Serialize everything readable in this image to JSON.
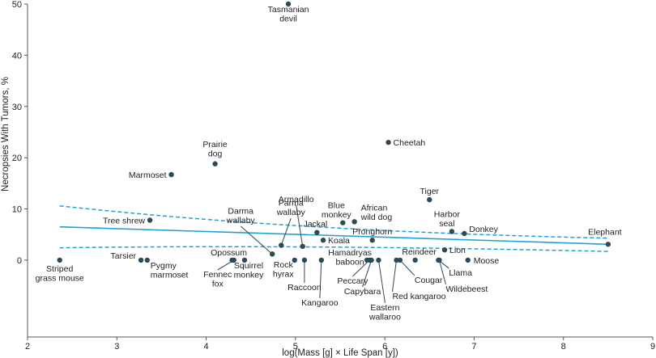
{
  "colors": {
    "point": "#2b4a55",
    "fit": "#1fa2d6",
    "axis": "#555555",
    "label": "#222222"
  },
  "chart_data": {
    "type": "scatter",
    "title": "",
    "xlabel": "log(Mass [g] × Life Span [y])",
    "ylabel": "Necropsies With Tumors, %",
    "xlim": [
      2,
      9
    ],
    "ylim": [
      -15,
      50
    ],
    "xticks": [
      2,
      3,
      4,
      5,
      6,
      7,
      8,
      9
    ],
    "yticks": [
      0,
      10,
      20,
      30,
      40,
      50
    ],
    "grid": false,
    "legend": "none",
    "points": [
      {
        "name": "Tasmanian devil",
        "x": 4.92,
        "y": 50.0
      },
      {
        "name": "Cheetah",
        "x": 6.04,
        "y": 23.0
      },
      {
        "name": "Prairie dog",
        "x": 4.1,
        "y": 18.8
      },
      {
        "name": "Marmoset",
        "x": 3.61,
        "y": 16.7
      },
      {
        "name": "Tiger",
        "x": 6.5,
        "y": 11.8
      },
      {
        "name": "Tree shrew",
        "x": 3.37,
        "y": 7.8
      },
      {
        "name": "African wild dog",
        "x": 5.66,
        "y": 7.5
      },
      {
        "name": "Blue monkey",
        "x": 5.53,
        "y": 7.3
      },
      {
        "name": "Harbor seal",
        "x": 6.75,
        "y": 5.6
      },
      {
        "name": "Donkey",
        "x": 6.89,
        "y": 5.2
      },
      {
        "name": "Jackal",
        "x": 5.24,
        "y": 5.4
      },
      {
        "name": "Koala",
        "x": 5.31,
        "y": 3.9
      },
      {
        "name": "Pronghorn",
        "x": 5.86,
        "y": 3.9
      },
      {
        "name": "Elephant",
        "x": 8.5,
        "y": 3.1
      },
      {
        "name": "Parma wallaby",
        "x": 4.84,
        "y": 2.9
      },
      {
        "name": "Armadillo",
        "x": 5.08,
        "y": 2.7
      },
      {
        "name": "Lion",
        "x": 6.67,
        "y": 2.0
      },
      {
        "name": "Darma wallaby",
        "x": 4.74,
        "y": 1.2
      },
      {
        "name": "Striped grass mouse",
        "x": 2.36,
        "y": 0
      },
      {
        "name": "Tarsier",
        "x": 3.27,
        "y": 0
      },
      {
        "name": "Pygmy marmoset",
        "x": 3.34,
        "y": 0
      },
      {
        "name": "Opossum",
        "x": 4.29,
        "y": 0
      },
      {
        "name": "Fennec fox",
        "x": 4.31,
        "y": 0
      },
      {
        "name": "Squirrel monkey",
        "x": 4.43,
        "y": 0
      },
      {
        "name": "Rock hyrax",
        "x": 4.99,
        "y": 0
      },
      {
        "name": "Raccoon",
        "x": 5.1,
        "y": 0
      },
      {
        "name": "Kangaroo",
        "x": 5.29,
        "y": 0
      },
      {
        "name": "Hamadryas baboon",
        "x": 5.8,
        "y": 0
      },
      {
        "name": "Peccary",
        "x": 5.83,
        "y": 0
      },
      {
        "name": "Capybara",
        "x": 5.85,
        "y": 0
      },
      {
        "name": "Eastern wallaroo",
        "x": 5.93,
        "y": 0
      },
      {
        "name": "Red kangaroo",
        "x": 6.13,
        "y": 0
      },
      {
        "name": "Cougar",
        "x": 6.17,
        "y": 0
      },
      {
        "name": "Reindeer",
        "x": 6.34,
        "y": 0
      },
      {
        "name": "Llama",
        "x": 6.6,
        "y": 0
      },
      {
        "name": "Wildebeest",
        "x": 6.61,
        "y": 0
      },
      {
        "name": "Moose",
        "x": 6.93,
        "y": 0
      }
    ],
    "fit": {
      "x": [
        2.36,
        8.5
      ],
      "y": [
        6.5,
        3.1
      ],
      "ci_upper": [
        10.6,
        4.3
      ],
      "ci_lower": [
        2.4,
        1.7
      ],
      "ci_mid": {
        "x": 5.0,
        "upper": 5.6,
        "lower": 3.1
      }
    }
  }
}
